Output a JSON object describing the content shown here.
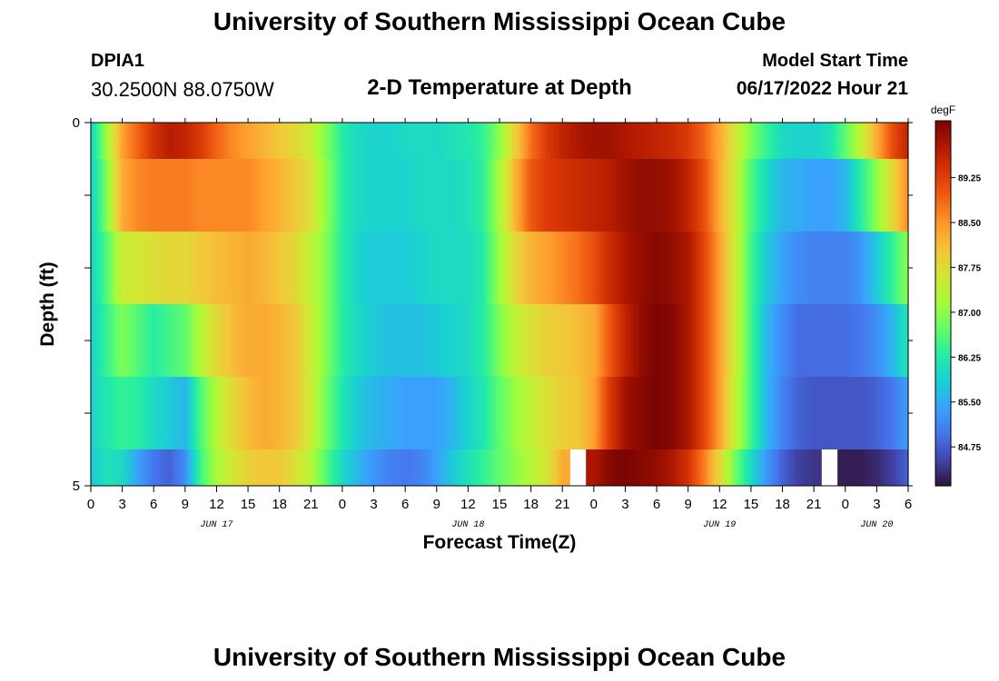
{
  "header": {
    "title": "University of Southern Mississippi Ocean Cube",
    "station_id": "DPIA1",
    "station_coords": "30.2500N  88.0750W",
    "subtitle": "2-D Temperature at Depth",
    "model_label": "Model Start Time",
    "model_value": "06/17/2022 Hour 21"
  },
  "footer": {
    "title": "University of Southern Mississippi Ocean Cube"
  },
  "chart_data": {
    "type": "heatmap",
    "title": "2-D Temperature at Depth",
    "xlabel": "Forecast Time(Z)",
    "ylabel": "Depth (ft)",
    "x_hours": [
      0,
      1.5,
      3,
      4.5,
      6,
      7.5,
      9,
      10.5,
      12,
      13.5,
      15,
      16.5,
      18,
      19.5,
      21,
      22.5,
      24,
      25.5,
      27,
      28.5,
      30,
      31.5,
      33,
      34.5,
      36,
      37.5,
      39,
      40.5,
      42,
      43.5,
      45,
      46.5,
      48,
      49.5,
      51,
      52.5,
      54,
      55.5,
      57,
      58.5,
      60,
      61.5,
      63,
      64.5,
      66,
      67.5,
      69,
      70.5,
      72,
      73.5,
      75,
      76.5,
      78
    ],
    "depth_rows": [
      {
        "depth_range": [
          0,
          0.5
        ],
        "values": [
          85.9,
          87.1,
          88.4,
          88.9,
          89.4,
          89.7,
          89.6,
          89.3,
          88.9,
          88.6,
          88.4,
          88.2,
          88.0,
          87.8,
          87.5,
          86.9,
          86.3,
          86.0,
          85.9,
          85.9,
          86.0,
          86.0,
          86.0,
          86.1,
          86.2,
          86.4,
          87.0,
          87.9,
          88.8,
          89.3,
          89.6,
          89.8,
          89.9,
          89.9,
          89.8,
          89.7,
          89.6,
          89.5,
          89.3,
          88.9,
          88.3,
          87.6,
          86.9,
          86.4,
          86.0,
          85.9,
          85.9,
          86.1,
          86.7,
          87.4,
          88.3,
          89.1,
          89.6
        ]
      },
      {
        "depth_range": [
          0.5,
          1.5
        ],
        "values": [
          85.9,
          86.9,
          88.3,
          88.6,
          88.7,
          88.7,
          88.7,
          88.6,
          88.6,
          88.6,
          88.6,
          88.4,
          88.2,
          88.0,
          87.7,
          87.0,
          86.3,
          86.0,
          85.9,
          85.9,
          85.9,
          86.0,
          86.0,
          86.0,
          86.1,
          86.4,
          87.2,
          88.2,
          89.0,
          89.3,
          89.4,
          89.5,
          89.6,
          89.7,
          89.9,
          90.0,
          90.0,
          89.9,
          89.6,
          89.1,
          88.3,
          87.5,
          86.6,
          86.0,
          85.6,
          85.5,
          85.4,
          85.4,
          85.6,
          86.3,
          87.0,
          87.8,
          88.6
        ]
      },
      {
        "depth_range": [
          1.5,
          2.5
        ],
        "values": [
          85.9,
          86.6,
          87.5,
          87.6,
          87.7,
          87.8,
          87.8,
          88.0,
          88.1,
          88.2,
          88.3,
          88.2,
          88.0,
          87.8,
          87.4,
          86.9,
          86.3,
          85.9,
          85.8,
          85.8,
          85.8,
          85.9,
          86.0,
          86.0,
          86.0,
          86.3,
          87.1,
          87.8,
          88.2,
          88.4,
          88.6,
          88.8,
          89.1,
          89.5,
          89.8,
          90.0,
          90.1,
          90.0,
          89.8,
          89.2,
          88.4,
          87.5,
          86.5,
          85.8,
          85.4,
          85.2,
          85.1,
          85.1,
          85.1,
          85.3,
          85.8,
          86.4,
          87.0
        ]
      },
      {
        "depth_range": [
          2.5,
          3.5
        ],
        "values": [
          85.9,
          86.4,
          86.9,
          86.6,
          86.3,
          86.5,
          86.7,
          87.3,
          87.8,
          88.1,
          88.3,
          88.3,
          88.2,
          88.0,
          87.5,
          86.9,
          86.3,
          86.0,
          85.8,
          85.7,
          85.7,
          85.7,
          85.8,
          85.9,
          86.0,
          86.3,
          86.9,
          87.4,
          87.7,
          87.9,
          88.0,
          88.1,
          88.3,
          89.0,
          89.6,
          90.0,
          90.2,
          90.1,
          89.8,
          89.2,
          88.4,
          87.5,
          86.5,
          85.6,
          85.2,
          84.9,
          84.9,
          84.9,
          84.9,
          85.0,
          85.2,
          85.6,
          86.2
        ]
      },
      {
        "depth_range": [
          3.5,
          4.5
        ],
        "values": [
          85.9,
          86.2,
          86.4,
          86.3,
          86.0,
          85.8,
          85.6,
          86.6,
          87.3,
          87.8,
          88.1,
          88.3,
          88.2,
          88.0,
          87.5,
          86.8,
          86.2,
          85.8,
          85.6,
          85.5,
          85.4,
          85.4,
          85.4,
          85.6,
          85.9,
          86.2,
          86.7,
          87.1,
          87.4,
          87.7,
          87.9,
          88.0,
          88.4,
          89.3,
          89.9,
          90.1,
          90.2,
          90.1,
          89.8,
          89.2,
          88.4,
          87.4,
          86.5,
          85.6,
          85.1,
          84.8,
          84.7,
          84.7,
          84.7,
          84.7,
          84.8,
          85.0,
          85.4
        ]
      },
      {
        "depth_range": [
          4.5,
          5
        ],
        "values": [
          85.8,
          86.1,
          86.0,
          85.4,
          85.0,
          84.8,
          85.2,
          86.5,
          87.2,
          87.6,
          87.9,
          88.0,
          88.0,
          87.7,
          87.3,
          86.6,
          86.0,
          85.6,
          85.3,
          85.1,
          85.0,
          85.1,
          85.4,
          85.8,
          86.1,
          86.4,
          86.7,
          87.0,
          87.3,
          87.6,
          88.3,
          null,
          89.8,
          90.1,
          90.2,
          90.1,
          90.0,
          89.8,
          89.4,
          88.7,
          87.8,
          86.8,
          86.0,
          85.3,
          84.8,
          84.5,
          84.4,
          null,
          84.2,
          84.2,
          84.3,
          84.5,
          84.8
        ]
      }
    ],
    "y_ticks": [
      {
        "value": 0,
        "label": "0"
      },
      {
        "value": 1,
        "label": ""
      },
      {
        "value": 2,
        "label": ""
      },
      {
        "value": 3,
        "label": ""
      },
      {
        "value": 4,
        "label": ""
      },
      {
        "value": 5,
        "label": "5"
      }
    ],
    "ylim": [
      0,
      5
    ],
    "xlim": [
      0,
      78
    ],
    "x_ticks": [
      {
        "hour": 0,
        "label": "0"
      },
      {
        "hour": 3,
        "label": "3"
      },
      {
        "hour": 6,
        "label": "6"
      },
      {
        "hour": 9,
        "label": "9"
      },
      {
        "hour": 12,
        "label": "12"
      },
      {
        "hour": 15,
        "label": "15"
      },
      {
        "hour": 18,
        "label": "18"
      },
      {
        "hour": 21,
        "label": "21"
      },
      {
        "hour": 24,
        "label": "0"
      },
      {
        "hour": 27,
        "label": "3"
      },
      {
        "hour": 30,
        "label": "6"
      },
      {
        "hour": 33,
        "label": "9"
      },
      {
        "hour": 36,
        "label": "12"
      },
      {
        "hour": 39,
        "label": "15"
      },
      {
        "hour": 42,
        "label": "18"
      },
      {
        "hour": 45,
        "label": "21"
      },
      {
        "hour": 48,
        "label": "0"
      },
      {
        "hour": 51,
        "label": "3"
      },
      {
        "hour": 54,
        "label": "6"
      },
      {
        "hour": 57,
        "label": "9"
      },
      {
        "hour": 60,
        "label": "12"
      },
      {
        "hour": 63,
        "label": "15"
      },
      {
        "hour": 66,
        "label": "18"
      },
      {
        "hour": 69,
        "label": "21"
      },
      {
        "hour": 72,
        "label": "0"
      },
      {
        "hour": 75,
        "label": "3"
      },
      {
        "hour": 78,
        "label": "6"
      }
    ],
    "date_labels": [
      {
        "hour": 12,
        "label": "JUN 17"
      },
      {
        "hour": 36,
        "label": "JUN 18"
      },
      {
        "hour": 60,
        "label": "JUN 19"
      },
      {
        "hour": 75,
        "label": "JUN 20"
      }
    ],
    "colorbar": {
      "unit": "degF",
      "min": 84.1,
      "max": 90.2,
      "labels": [
        "89.25",
        "88.50",
        "87.75",
        "87.00",
        "86.25",
        "85.50",
        "84.75"
      ],
      "colors": [
        "#30123b",
        "#4145ab",
        "#4675ed",
        "#39a2fc",
        "#1bcfd4",
        "#24eca6",
        "#61fc6c",
        "#a4fc3b",
        "#d1e834",
        "#f3c63a",
        "#fe9b2d",
        "#f36315",
        "#d93806",
        "#b11901",
        "#7a0402"
      ]
    }
  }
}
